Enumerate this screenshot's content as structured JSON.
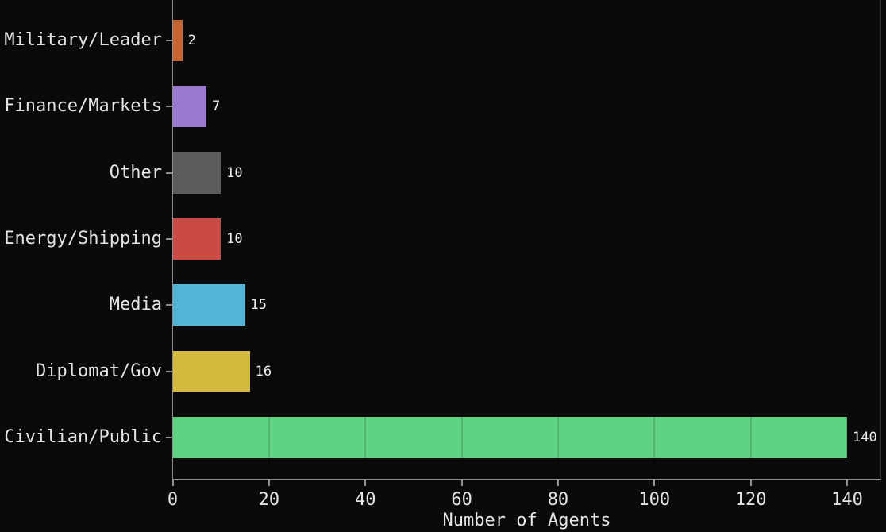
{
  "chart_data": {
    "type": "bar",
    "orientation": "horizontal",
    "title": "",
    "xlabel": "Number of Agents",
    "ylabel": "",
    "xlim": [
      0,
      147
    ],
    "xticks": [
      0,
      20,
      40,
      60,
      80,
      100,
      120,
      140
    ],
    "grid": "vertical gridlines, dark overlay visible on bars only",
    "legend": "none",
    "categories": [
      "Military/Leader",
      "Finance/Markets",
      "Other",
      "Energy/Shipping",
      "Media",
      "Diplomat/Gov",
      "Civilian/Public"
    ],
    "values": [
      2,
      7,
      10,
      10,
      15,
      16,
      140
    ],
    "value_labels": [
      "2",
      "7",
      "10",
      "10",
      "15",
      "16",
      "140"
    ],
    "bar_colors": [
      "#c66531",
      "#9a7ad0",
      "#5b5b5b",
      "#ca4b43",
      "#53b4d5",
      "#d5bb3d",
      "#5fd382"
    ]
  },
  "colors": {
    "background": "#0a0a0a",
    "text": "#e4e4e4",
    "value_text": "#ececec",
    "axis_spine": "#8f8f8f",
    "faint_spine": "#2f2f2f"
  }
}
